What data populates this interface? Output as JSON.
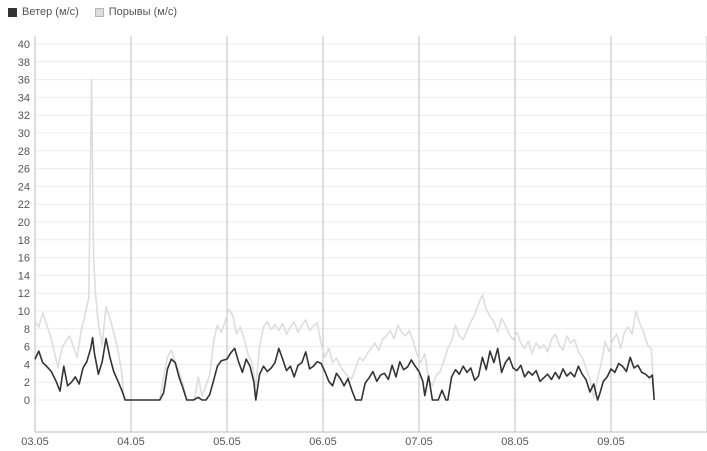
{
  "legend": {
    "wind": {
      "label": "Ветер (м/с)",
      "color": "#333333"
    },
    "gust": {
      "label": "Порывы (м/с)",
      "color": "#dddddd"
    }
  },
  "chart_data": {
    "type": "line",
    "x_tick_labels": [
      "03.05",
      "04.05",
      "05.05",
      "06.05",
      "07.05",
      "08.05",
      "09.05"
    ],
    "y_tick_labels": [
      "0",
      "2",
      "4",
      "6",
      "8",
      "10",
      "12",
      "14",
      "16",
      "18",
      "20",
      "22",
      "24",
      "26",
      "28",
      "30",
      "32",
      "34",
      "36",
      "38",
      "40"
    ],
    "xlim_days": [
      0,
      7
    ],
    "ylim": [
      0,
      40
    ],
    "grid": {
      "vertical_day_lines": true,
      "horizontal": true
    },
    "legend_position": "top-left",
    "series": [
      {
        "name": "Ветер (м/с)",
        "color": "#333333",
        "points": [
          [
            0,
            4.6
          ],
          [
            0.04,
            5.5
          ],
          [
            0.08,
            4.2
          ],
          [
            0.12,
            3.8
          ],
          [
            0.17,
            3.2
          ],
          [
            0.22,
            2.1
          ],
          [
            0.26,
            1
          ],
          [
            0.3,
            3.8
          ],
          [
            0.34,
            1.6
          ],
          [
            0.38,
            2
          ],
          [
            0.42,
            2.6
          ],
          [
            0.46,
            1.8
          ],
          [
            0.5,
            3.6
          ],
          [
            0.54,
            4.3
          ],
          [
            0.58,
            5.8
          ],
          [
            0.6,
            7
          ],
          [
            0.62,
            5.2
          ],
          [
            0.66,
            2.9
          ],
          [
            0.7,
            4.3
          ],
          [
            0.74,
            6.9
          ],
          [
            0.78,
            4.8
          ],
          [
            0.82,
            3.2
          ],
          [
            0.86,
            2.2
          ],
          [
            0.9,
            1.2
          ],
          [
            0.94,
            0
          ],
          [
            1,
            0
          ],
          [
            1.1,
            0
          ],
          [
            1.2,
            0
          ],
          [
            1.3,
            0
          ],
          [
            1.34,
            0.8
          ],
          [
            1.38,
            3.5
          ],
          [
            1.42,
            4.6
          ],
          [
            1.46,
            4.2
          ],
          [
            1.5,
            2.6
          ],
          [
            1.54,
            1.4
          ],
          [
            1.58,
            0
          ],
          [
            1.65,
            0
          ],
          [
            1.7,
            0.3
          ],
          [
            1.74,
            0
          ],
          [
            1.78,
            0
          ],
          [
            1.82,
            0.6
          ],
          [
            1.86,
            2.2
          ],
          [
            1.9,
            3.8
          ],
          [
            1.94,
            4.4
          ],
          [
            2,
            4.6
          ],
          [
            2.04,
            5.3
          ],
          [
            2.08,
            5.8
          ],
          [
            2.12,
            4.3
          ],
          [
            2.16,
            3.1
          ],
          [
            2.2,
            4.6
          ],
          [
            2.24,
            3.8
          ],
          [
            2.28,
            2
          ],
          [
            2.3,
            0
          ],
          [
            2.34,
            2.9
          ],
          [
            2.38,
            3.8
          ],
          [
            2.42,
            3.2
          ],
          [
            2.46,
            3.6
          ],
          [
            2.5,
            4.2
          ],
          [
            2.54,
            5.8
          ],
          [
            2.58,
            4.6
          ],
          [
            2.62,
            3.3
          ],
          [
            2.66,
            3.8
          ],
          [
            2.7,
            2.6
          ],
          [
            2.74,
            3.9
          ],
          [
            2.78,
            4.2
          ],
          [
            2.82,
            5.4
          ],
          [
            2.86,
            3.5
          ],
          [
            2.9,
            3.8
          ],
          [
            2.94,
            4.3
          ],
          [
            2.98,
            4.1
          ],
          [
            3.02,
            3.2
          ],
          [
            3.06,
            2.1
          ],
          [
            3.1,
            1.6
          ],
          [
            3.14,
            3
          ],
          [
            3.18,
            2.4
          ],
          [
            3.22,
            1.6
          ],
          [
            3.26,
            2.4
          ],
          [
            3.3,
            1.1
          ],
          [
            3.34,
            0
          ],
          [
            3.4,
            0
          ],
          [
            3.44,
            1.9
          ],
          [
            3.48,
            2.5
          ],
          [
            3.52,
            3.2
          ],
          [
            3.56,
            2.1
          ],
          [
            3.6,
            2.8
          ],
          [
            3.64,
            3
          ],
          [
            3.68,
            2.3
          ],
          [
            3.72,
            3.9
          ],
          [
            3.76,
            2.6
          ],
          [
            3.8,
            4.3
          ],
          [
            3.84,
            3.4
          ],
          [
            3.88,
            3.7
          ],
          [
            3.92,
            4.5
          ],
          [
            3.96,
            3.8
          ],
          [
            4,
            3.2
          ],
          [
            4.04,
            2.1
          ],
          [
            4.06,
            0.5
          ],
          [
            4.1,
            2.7
          ],
          [
            4.14,
            0
          ],
          [
            4.2,
            0
          ],
          [
            4.24,
            1.1
          ],
          [
            4.28,
            0
          ],
          [
            4.3,
            0
          ],
          [
            4.34,
            2.6
          ],
          [
            4.38,
            3.4
          ],
          [
            4.42,
            2.9
          ],
          [
            4.46,
            3.8
          ],
          [
            4.5,
            3.1
          ],
          [
            4.54,
            3.6
          ],
          [
            4.58,
            2.2
          ],
          [
            4.62,
            2.7
          ],
          [
            4.66,
            4.8
          ],
          [
            4.7,
            3.4
          ],
          [
            4.74,
            5.5
          ],
          [
            4.78,
            4.2
          ],
          [
            4.82,
            5.8
          ],
          [
            4.86,
            3.1
          ],
          [
            4.9,
            4.2
          ],
          [
            4.94,
            4.8
          ],
          [
            4.98,
            3.6
          ],
          [
            5.02,
            3.3
          ],
          [
            5.06,
            3.9
          ],
          [
            5.1,
            2.6
          ],
          [
            5.14,
            3.2
          ],
          [
            5.18,
            2.8
          ],
          [
            5.22,
            3.3
          ],
          [
            5.26,
            2.1
          ],
          [
            5.3,
            2.5
          ],
          [
            5.34,
            2.9
          ],
          [
            5.38,
            2.3
          ],
          [
            5.42,
            3.1
          ],
          [
            5.46,
            2.4
          ],
          [
            5.5,
            3.5
          ],
          [
            5.54,
            2.7
          ],
          [
            5.58,
            3.1
          ],
          [
            5.62,
            2.6
          ],
          [
            5.66,
            3.8
          ],
          [
            5.7,
            2.9
          ],
          [
            5.74,
            2.3
          ],
          [
            5.78,
            0.9
          ],
          [
            5.82,
            1.8
          ],
          [
            5.86,
            0
          ],
          [
            5.88,
            0.6
          ],
          [
            5.92,
            2.1
          ],
          [
            5.96,
            2.6
          ],
          [
            6,
            3.5
          ],
          [
            6.04,
            3.1
          ],
          [
            6.08,
            4.1
          ],
          [
            6.12,
            3.8
          ],
          [
            6.16,
            3.2
          ],
          [
            6.2,
            4.8
          ],
          [
            6.24,
            3.6
          ],
          [
            6.28,
            3.9
          ],
          [
            6.32,
            3.1
          ],
          [
            6.36,
            2.9
          ],
          [
            6.4,
            2.5
          ],
          [
            6.43,
            2.8
          ],
          [
            6.45,
            0
          ]
        ]
      },
      {
        "name": "Порывы (м/с)",
        "color": "#dddddd",
        "points": [
          [
            0,
            8.8
          ],
          [
            0.04,
            8.2
          ],
          [
            0.08,
            9.8
          ],
          [
            0.12,
            8.5
          ],
          [
            0.16,
            7.2
          ],
          [
            0.2,
            5.5
          ],
          [
            0.24,
            3.6
          ],
          [
            0.28,
            5.8
          ],
          [
            0.32,
            6.6
          ],
          [
            0.36,
            7.2
          ],
          [
            0.4,
            6
          ],
          [
            0.44,
            4.8
          ],
          [
            0.48,
            7.8
          ],
          [
            0.52,
            9.5
          ],
          [
            0.56,
            11.5
          ],
          [
            0.59,
            36
          ],
          [
            0.61,
            16
          ],
          [
            0.63,
            12
          ],
          [
            0.66,
            8.5
          ],
          [
            0.7,
            6.2
          ],
          [
            0.74,
            10.5
          ],
          [
            0.78,
            9.2
          ],
          [
            0.82,
            7.6
          ],
          [
            0.86,
            5.8
          ],
          [
            0.9,
            3.4
          ],
          [
            0.93,
            0
          ],
          [
            1,
            0
          ],
          [
            1.1,
            0
          ],
          [
            1.2,
            0
          ],
          [
            1.3,
            0
          ],
          [
            1.34,
            2.6
          ],
          [
            1.38,
            4.8
          ],
          [
            1.42,
            5.6
          ],
          [
            1.46,
            4.3
          ],
          [
            1.5,
            3.2
          ],
          [
            1.54,
            1.8
          ],
          [
            1.58,
            0
          ],
          [
            1.66,
            0
          ],
          [
            1.7,
            2.6
          ],
          [
            1.74,
            0.5
          ],
          [
            1.78,
            1.6
          ],
          [
            1.82,
            2.8
          ],
          [
            1.86,
            6.6
          ],
          [
            1.9,
            8.4
          ],
          [
            1.94,
            7.6
          ],
          [
            1.98,
            8.8
          ],
          [
            2.02,
            10.2
          ],
          [
            2.06,
            9.5
          ],
          [
            2.1,
            7.4
          ],
          [
            2.14,
            8.2
          ],
          [
            2.18,
            6.8
          ],
          [
            2.22,
            5.1
          ],
          [
            2.26,
            4.2
          ],
          [
            2.3,
            1.5
          ],
          [
            2.34,
            6
          ],
          [
            2.38,
            8.2
          ],
          [
            2.42,
            8.8
          ],
          [
            2.46,
            7.9
          ],
          [
            2.5,
            8.5
          ],
          [
            2.54,
            7.8
          ],
          [
            2.58,
            8.6
          ],
          [
            2.62,
            7.4
          ],
          [
            2.66,
            8.2
          ],
          [
            2.7,
            8.8
          ],
          [
            2.74,
            7.6
          ],
          [
            2.78,
            8.4
          ],
          [
            2.82,
            9
          ],
          [
            2.86,
            7.8
          ],
          [
            2.9,
            8.3
          ],
          [
            2.94,
            8.7
          ],
          [
            2.98,
            6.4
          ],
          [
            3.02,
            4.8
          ],
          [
            3.06,
            5.8
          ],
          [
            3.1,
            4.2
          ],
          [
            3.14,
            4.7
          ],
          [
            3.18,
            3.8
          ],
          [
            3.22,
            3.2
          ],
          [
            3.26,
            2.6
          ],
          [
            3.3,
            2.4
          ],
          [
            3.34,
            3.6
          ],
          [
            3.38,
            4.8
          ],
          [
            3.42,
            4.4
          ],
          [
            3.46,
            5.2
          ],
          [
            3.5,
            5.8
          ],
          [
            3.54,
            6.4
          ],
          [
            3.58,
            5.6
          ],
          [
            3.62,
            6.8
          ],
          [
            3.66,
            7.2
          ],
          [
            3.7,
            7.8
          ],
          [
            3.74,
            6.9
          ],
          [
            3.78,
            8.4
          ],
          [
            3.82,
            7.6
          ],
          [
            3.86,
            7.2
          ],
          [
            3.9,
            7.8
          ],
          [
            3.94,
            6.6
          ],
          [
            3.98,
            5.1
          ],
          [
            4.02,
            4.2
          ],
          [
            4.06,
            5.2
          ],
          [
            4.1,
            2.3
          ],
          [
            4.14,
            1.6
          ],
          [
            4.18,
            2.8
          ],
          [
            4.22,
            3.2
          ],
          [
            4.26,
            4.4
          ],
          [
            4.3,
            5.8
          ],
          [
            4.34,
            6.6
          ],
          [
            4.38,
            8.4
          ],
          [
            4.42,
            7.2
          ],
          [
            4.46,
            6.8
          ],
          [
            4.5,
            7.8
          ],
          [
            4.54,
            8.8
          ],
          [
            4.58,
            9.6
          ],
          [
            4.62,
            10.8
          ],
          [
            4.66,
            11.8
          ],
          [
            4.7,
            10.2
          ],
          [
            4.74,
            9.4
          ],
          [
            4.78,
            8.8
          ],
          [
            4.82,
            7.6
          ],
          [
            4.86,
            9.2
          ],
          [
            4.9,
            8.4
          ],
          [
            4.94,
            7.4
          ],
          [
            4.98,
            6.8
          ],
          [
            5.02,
            7.6
          ],
          [
            5.06,
            6.4
          ],
          [
            5.1,
            5.8
          ],
          [
            5.14,
            6.6
          ],
          [
            5.18,
            5.2
          ],
          [
            5.22,
            6.4
          ],
          [
            5.26,
            5.8
          ],
          [
            5.3,
            6.2
          ],
          [
            5.34,
            5.4
          ],
          [
            5.38,
            6.8
          ],
          [
            5.42,
            7.4
          ],
          [
            5.46,
            6.2
          ],
          [
            5.5,
            5.6
          ],
          [
            5.54,
            7.2
          ],
          [
            5.58,
            6.4
          ],
          [
            5.62,
            6.8
          ],
          [
            5.66,
            5.4
          ],
          [
            5.7,
            4.8
          ],
          [
            5.74,
            3.6
          ],
          [
            5.78,
            2.4
          ],
          [
            5.82,
            0.2
          ],
          [
            5.86,
            2.5
          ],
          [
            5.9,
            4.2
          ],
          [
            5.94,
            6.6
          ],
          [
            5.98,
            5.4
          ],
          [
            6.02,
            6.8
          ],
          [
            6.06,
            7.4
          ],
          [
            6.1,
            5.8
          ],
          [
            6.14,
            7.6
          ],
          [
            6.18,
            8.2
          ],
          [
            6.22,
            7.4
          ],
          [
            6.26,
            10
          ],
          [
            6.3,
            8.6
          ],
          [
            6.34,
            7.6
          ],
          [
            6.38,
            6.2
          ],
          [
            6.42,
            5.8
          ],
          [
            6.45,
            0.5
          ]
        ]
      }
    ]
  }
}
